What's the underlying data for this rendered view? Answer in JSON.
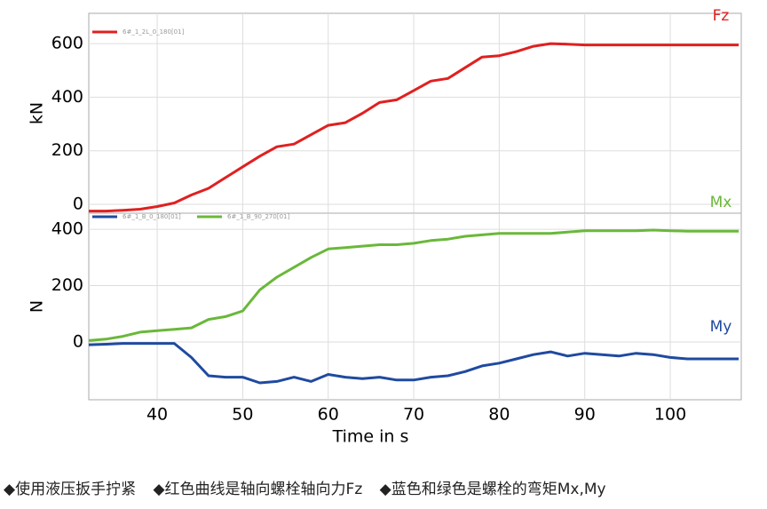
{
  "chart_data": [
    {
      "type": "line",
      "ylabel": "kN",
      "x": [
        32,
        34,
        36,
        38,
        40,
        42,
        44,
        46,
        48,
        50,
        52,
        54,
        56,
        58,
        60,
        62,
        64,
        66,
        68,
        70,
        72,
        74,
        76,
        78,
        80,
        82,
        84,
        86,
        88,
        90,
        92,
        94,
        96,
        98,
        100,
        102,
        104,
        106,
        108
      ],
      "series": [
        {
          "name": "6#_1_2L_0_180[01]",
          "label": "Fz",
          "color": "#e02020",
          "values": [
            -25,
            -25,
            -22,
            -18,
            -8,
            5,
            35,
            60,
            100,
            140,
            180,
            215,
            225,
            260,
            295,
            305,
            340,
            380,
            390,
            425,
            460,
            470,
            510,
            550,
            555,
            570,
            590,
            600,
            598,
            595,
            595,
            595,
            595,
            595,
            595,
            595,
            595,
            595,
            595
          ]
        }
      ],
      "xlim": [
        32,
        108.3
      ],
      "xticks": [
        40,
        50,
        60,
        70,
        80,
        90,
        100
      ],
      "ylim": [
        -33,
        713
      ],
      "yticks": [
        0,
        200,
        400,
        600
      ],
      "grid": true
    },
    {
      "type": "line",
      "ylabel": "N",
      "xlabel": "Time in s",
      "x": [
        32,
        34,
        36,
        38,
        40,
        42,
        44,
        46,
        48,
        50,
        52,
        54,
        56,
        58,
        60,
        62,
        64,
        66,
        68,
        70,
        72,
        74,
        76,
        78,
        80,
        82,
        84,
        86,
        88,
        90,
        92,
        94,
        96,
        98,
        100,
        102,
        104,
        106,
        108
      ],
      "series": [
        {
          "name": "6#_1_B_0_180[01]",
          "label": "My",
          "color": "#1f4aa0",
          "values": [
            -10,
            -8,
            -5,
            -5,
            -5,
            -5,
            -55,
            -120,
            -125,
            -125,
            -145,
            -140,
            -125,
            -140,
            -115,
            -125,
            -130,
            -125,
            -135,
            -135,
            -125,
            -120,
            -105,
            -85,
            -75,
            -60,
            -45,
            -35,
            -50,
            -40,
            -45,
            -50,
            -40,
            -45,
            -55,
            -60,
            -60,
            -60,
            -60
          ]
        },
        {
          "name": "6#_1_B_90_270[01]",
          "label": "Mx",
          "color": "#6ab83a",
          "values": [
            5,
            10,
            20,
            35,
            40,
            45,
            50,
            80,
            90,
            110,
            185,
            230,
            265,
            300,
            330,
            335,
            340,
            345,
            345,
            350,
            360,
            365,
            375,
            380,
            385,
            385,
            385,
            385,
            390,
            395,
            395,
            395,
            395,
            397,
            395,
            393,
            393,
            393,
            393
          ]
        }
      ],
      "xlim": [
        32,
        108.3
      ],
      "xticks": [
        40,
        50,
        60,
        70,
        80,
        90,
        100
      ],
      "ylim": [
        -205,
        457
      ],
      "yticks": [
        0,
        200,
        400
      ],
      "grid": true
    }
  ],
  "caption": [
    "◆使用液压扳手拧紧",
    "◆红色曲线是轴向螺栓轴向力Fz",
    "◆蓝色和绿色是螺栓的弯矩Mx,My"
  ]
}
